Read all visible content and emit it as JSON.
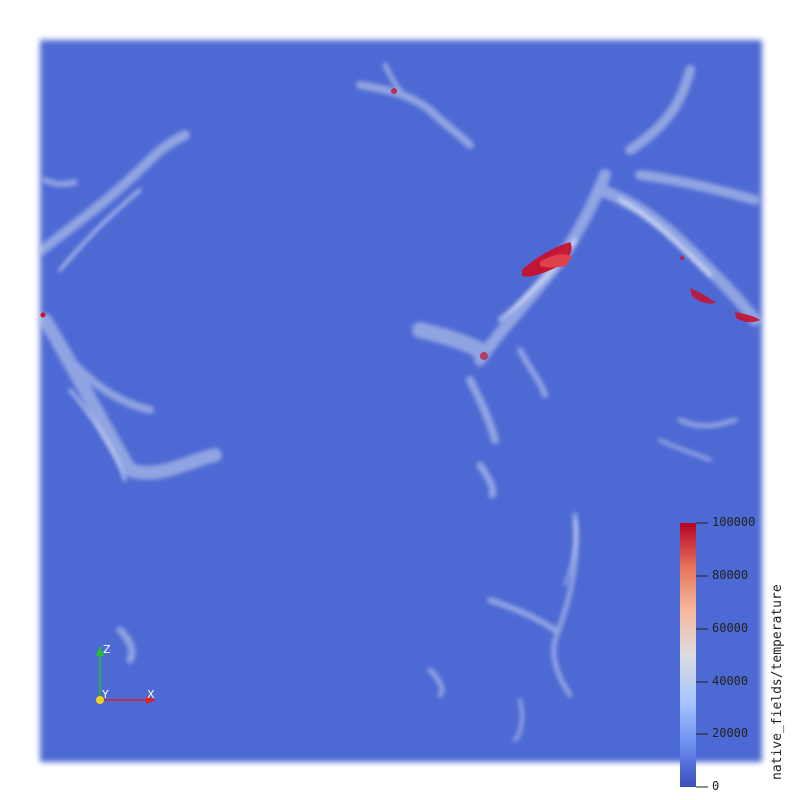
{
  "scene": {
    "description_colors": {
      "background": "#ffffff",
      "volume_base": "#4a66d2",
      "filament": "#c7d3ee",
      "hot": "#c8102e"
    }
  },
  "legend": {
    "title": "native_fields/temperature",
    "ticks": [
      "100000",
      "80000",
      "60000",
      "40000",
      "20000",
      "0"
    ],
    "range": [
      0,
      100000
    ],
    "colormap": [
      "#3b4cc0",
      "#6f92f3",
      "#aac7fd",
      "#dddddd",
      "#f7b89c",
      "#e7745b",
      "#b40426"
    ]
  },
  "axes": {
    "z_label": "Z",
    "y_label": "Y",
    "x_label": "X",
    "z_color": "#22c022",
    "x_color": "#e02020",
    "y_color": "#f0d020"
  }
}
